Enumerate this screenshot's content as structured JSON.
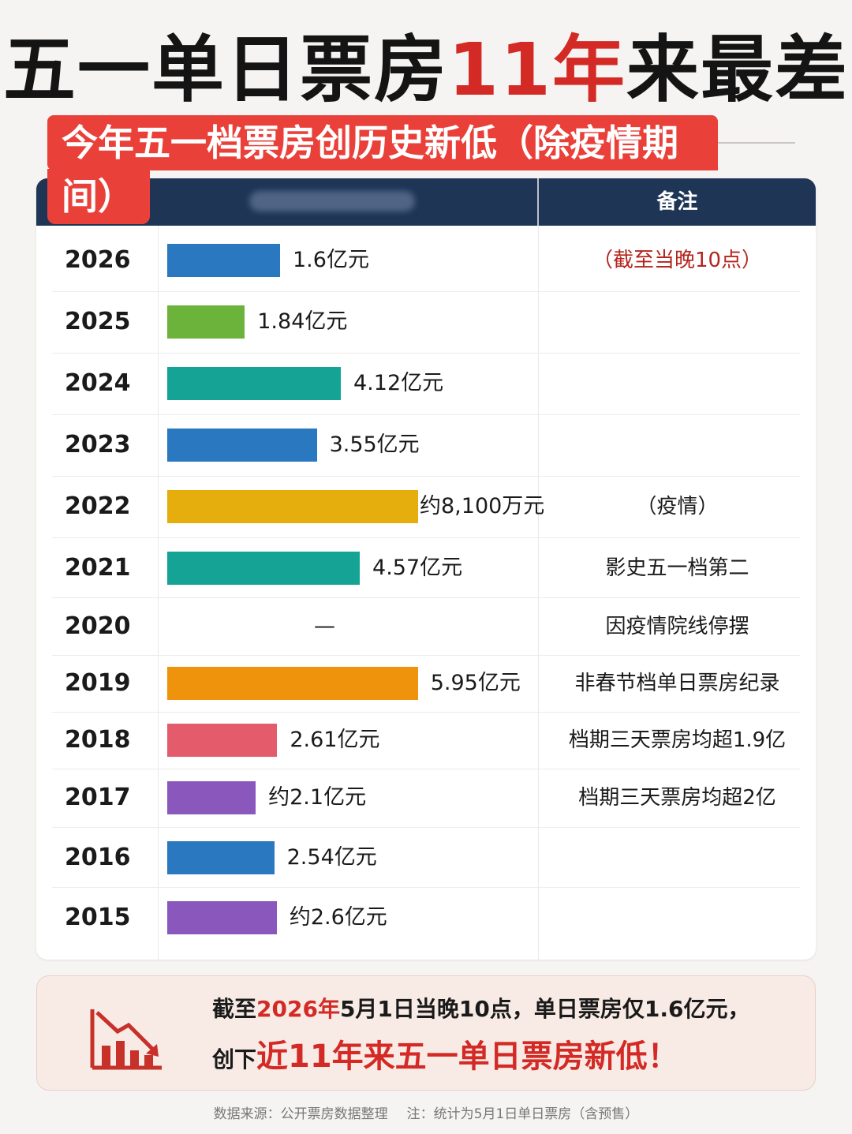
{
  "header": {
    "title_a": "五一单日票房",
    "title_b": "11年",
    "title_c": "来最差",
    "subtitle_line1": "今年五一档票房创历史新低（除疫情期",
    "subtitle_line2": "间）"
  },
  "table": {
    "note_header": "备注"
  },
  "colors": {
    "blue": "#2a78c0",
    "green": "#6bb33a",
    "teal": "#14a394",
    "gold": "#e6ae0c",
    "orange": "#ef930c",
    "pink": "#e45c6c",
    "purple": "#8a58bd",
    "header_bg": "#1e3556",
    "accent_red": "#d42a26"
  },
  "chart_data": {
    "type": "bar",
    "orientation": "horizontal",
    "unit": "亿元",
    "categories": [
      "2026",
      "2025",
      "2024",
      "2023",
      "2022",
      "2021",
      "2020",
      "2019",
      "2018",
      "2017",
      "2016",
      "2015"
    ],
    "values": [
      1.6,
      1.84,
      4.12,
      3.55,
      0.81,
      4.57,
      null,
      5.95,
      2.61,
      2.1,
      2.54,
      2.6
    ],
    "value_labels": [
      "1.6亿元",
      "1.84亿元",
      "4.12亿元",
      "3.55亿元",
      "约8,100万元",
      "4.57亿元",
      "—",
      "5.95亿元",
      "2.61亿元",
      "约2.1亿元",
      "2.54亿元",
      "约2.6亿元"
    ],
    "bar_colors": [
      "blue",
      "green",
      "teal",
      "blue",
      "gold",
      "teal",
      null,
      "orange",
      "pink",
      "purple",
      "blue",
      "purple"
    ],
    "notes": [
      "（截至当晚10点）",
      "",
      "",
      "",
      "（疫情）",
      "影史五一档第二",
      "因疫情院线停摆",
      "非春节档单日票房纪录",
      "档期三天票房均超1.9亿",
      "档期三天票房均超2亿",
      "",
      ""
    ]
  },
  "summary": {
    "line1_a": "截至",
    "line1_b": "2026年",
    "line1_c": "5月1日当晚10点，单日票房仅1.6亿元，",
    "line2_a": "创下",
    "line2_b": "近11年来五一单日票房新低！",
    "icon": "declining-bar-chart-icon"
  },
  "footer": {
    "source": "数据来源：公开票房数据整理",
    "note": "注：统计为5月1日单日票房（含预售）"
  }
}
